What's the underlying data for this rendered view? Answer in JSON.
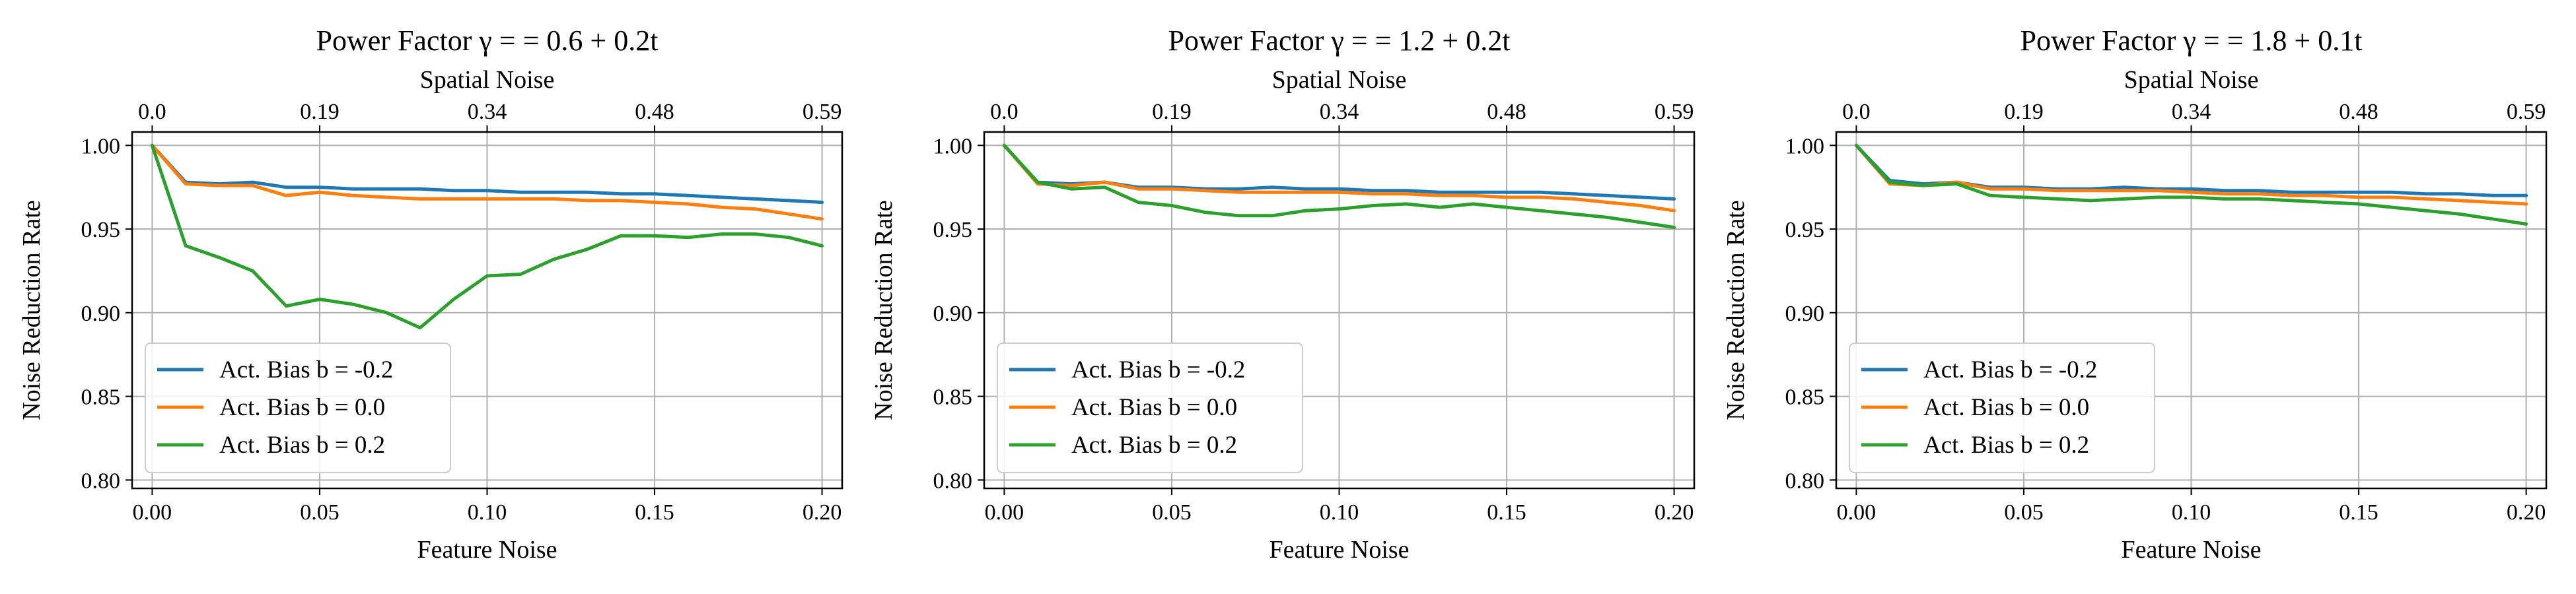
{
  "chart_data": [
    {
      "type": "line",
      "title": "Power Factor γ = = 0.6 + 0.2t",
      "xlabel": "Feature Noise",
      "ylabel": "Noise Reduction Rate",
      "top_xlabel": "Spatial Noise",
      "xlim": [
        -0.006,
        0.206
      ],
      "ylim": [
        0.795,
        1.008
      ],
      "x_ticks": [
        "0.00",
        "0.05",
        "0.10",
        "0.15",
        "0.20"
      ],
      "x_tick_values": [
        0,
        0.05,
        0.1,
        0.15,
        0.2
      ],
      "y_ticks": [
        "0.80",
        "0.85",
        "0.90",
        "0.95",
        "1.00"
      ],
      "y_tick_values": [
        0.8,
        0.85,
        0.9,
        0.95,
        1.0
      ],
      "top_ticks": [
        "0.0",
        "0.19",
        "0.34",
        "0.48",
        "0.59"
      ],
      "top_tick_values": [
        0,
        0.05,
        0.1,
        0.15,
        0.2
      ],
      "grid": true,
      "legend_position": "lower-left",
      "x": [
        0,
        0.01,
        0.02,
        0.03,
        0.04,
        0.05,
        0.06,
        0.07,
        0.08,
        0.09,
        0.1,
        0.11,
        0.12,
        0.13,
        0.14,
        0.15,
        0.16,
        0.17,
        0.18,
        0.19,
        0.2
      ],
      "series": [
        {
          "name": "Act. Bias b = -0.2",
          "color": "#1f77b4",
          "values": [
            1.0,
            0.978,
            0.977,
            0.978,
            0.975,
            0.975,
            0.974,
            0.974,
            0.974,
            0.973,
            0.973,
            0.972,
            0.972,
            0.972,
            0.971,
            0.971,
            0.97,
            0.969,
            0.968,
            0.967,
            0.966
          ]
        },
        {
          "name": "Act. Bias b = 0.0",
          "color": "#ff7f0e",
          "values": [
            1.0,
            0.977,
            0.976,
            0.976,
            0.97,
            0.972,
            0.97,
            0.969,
            0.968,
            0.968,
            0.968,
            0.968,
            0.968,
            0.967,
            0.967,
            0.966,
            0.965,
            0.963,
            0.962,
            0.959,
            0.956
          ]
        },
        {
          "name": "Act. Bias b = 0.2",
          "color": "#2ca02c",
          "values": [
            1.0,
            0.94,
            0.933,
            0.925,
            0.904,
            0.908,
            0.905,
            0.9,
            0.891,
            0.908,
            0.922,
            0.923,
            0.932,
            0.938,
            0.946,
            0.946,
            0.945,
            0.947,
            0.947,
            0.945,
            0.94
          ]
        }
      ]
    },
    {
      "type": "line",
      "title": "Power Factor γ = = 1.2 + 0.2t",
      "xlabel": "Feature Noise",
      "ylabel": "Noise Reduction Rate",
      "top_xlabel": "Spatial Noise",
      "xlim": [
        -0.006,
        0.206
      ],
      "ylim": [
        0.795,
        1.008
      ],
      "x_ticks": [
        "0.00",
        "0.05",
        "0.10",
        "0.15",
        "0.20"
      ],
      "x_tick_values": [
        0,
        0.05,
        0.1,
        0.15,
        0.2
      ],
      "y_ticks": [
        "0.80",
        "0.85",
        "0.90",
        "0.95",
        "1.00"
      ],
      "y_tick_values": [
        0.8,
        0.85,
        0.9,
        0.95,
        1.0
      ],
      "top_ticks": [
        "0.0",
        "0.19",
        "0.34",
        "0.48",
        "0.59"
      ],
      "top_tick_values": [
        0,
        0.05,
        0.1,
        0.15,
        0.2
      ],
      "grid": true,
      "legend_position": "lower-left",
      "x": [
        0,
        0.01,
        0.02,
        0.03,
        0.04,
        0.05,
        0.06,
        0.07,
        0.08,
        0.09,
        0.1,
        0.11,
        0.12,
        0.13,
        0.14,
        0.15,
        0.16,
        0.17,
        0.18,
        0.19,
        0.2
      ],
      "series": [
        {
          "name": "Act. Bias b = -0.2",
          "color": "#1f77b4",
          "values": [
            1.0,
            0.978,
            0.977,
            0.978,
            0.975,
            0.975,
            0.974,
            0.974,
            0.975,
            0.974,
            0.974,
            0.973,
            0.973,
            0.972,
            0.972,
            0.972,
            0.972,
            0.971,
            0.97,
            0.969,
            0.968
          ]
        },
        {
          "name": "Act. Bias b = 0.0",
          "color": "#ff7f0e",
          "values": [
            1.0,
            0.977,
            0.976,
            0.978,
            0.974,
            0.974,
            0.973,
            0.972,
            0.972,
            0.972,
            0.972,
            0.971,
            0.971,
            0.97,
            0.97,
            0.969,
            0.969,
            0.968,
            0.966,
            0.964,
            0.961
          ]
        },
        {
          "name": "Act. Bias b = 0.2",
          "color": "#2ca02c",
          "values": [
            1.0,
            0.978,
            0.974,
            0.975,
            0.966,
            0.964,
            0.96,
            0.958,
            0.958,
            0.961,
            0.962,
            0.964,
            0.965,
            0.963,
            0.965,
            0.963,
            0.961,
            0.959,
            0.957,
            0.954,
            0.951
          ]
        }
      ]
    },
    {
      "type": "line",
      "title": "Power Factor γ = = 1.8 + 0.1t",
      "xlabel": "Feature Noise",
      "ylabel": "Noise Reduction Rate",
      "top_xlabel": "Spatial Noise",
      "xlim": [
        -0.006,
        0.206
      ],
      "ylim": [
        0.795,
        1.008
      ],
      "x_ticks": [
        "0.00",
        "0.05",
        "0.10",
        "0.15",
        "0.20"
      ],
      "x_tick_values": [
        0,
        0.05,
        0.1,
        0.15,
        0.2
      ],
      "y_ticks": [
        "0.80",
        "0.85",
        "0.90",
        "0.95",
        "1.00"
      ],
      "y_tick_values": [
        0.8,
        0.85,
        0.9,
        0.95,
        1.0
      ],
      "top_ticks": [
        "0.0",
        "0.19",
        "0.34",
        "0.48",
        "0.59"
      ],
      "top_tick_values": [
        0,
        0.05,
        0.1,
        0.15,
        0.2
      ],
      "grid": true,
      "legend_position": "lower-left",
      "x": [
        0,
        0.01,
        0.02,
        0.03,
        0.04,
        0.05,
        0.06,
        0.07,
        0.08,
        0.09,
        0.1,
        0.11,
        0.12,
        0.13,
        0.14,
        0.15,
        0.16,
        0.17,
        0.18,
        0.19,
        0.2
      ],
      "series": [
        {
          "name": "Act. Bias b = -0.2",
          "color": "#1f77b4",
          "values": [
            1.0,
            0.979,
            0.977,
            0.978,
            0.975,
            0.975,
            0.974,
            0.974,
            0.975,
            0.974,
            0.974,
            0.973,
            0.973,
            0.972,
            0.972,
            0.972,
            0.972,
            0.971,
            0.971,
            0.97,
            0.97
          ]
        },
        {
          "name": "Act. Bias b = 0.0",
          "color": "#ff7f0e",
          "values": [
            1.0,
            0.977,
            0.976,
            0.978,
            0.974,
            0.974,
            0.973,
            0.973,
            0.973,
            0.973,
            0.972,
            0.971,
            0.971,
            0.97,
            0.97,
            0.969,
            0.969,
            0.968,
            0.967,
            0.966,
            0.965
          ]
        },
        {
          "name": "Act. Bias b = 0.2",
          "color": "#2ca02c",
          "values": [
            1.0,
            0.978,
            0.976,
            0.977,
            0.97,
            0.969,
            0.968,
            0.967,
            0.968,
            0.969,
            0.969,
            0.968,
            0.968,
            0.967,
            0.966,
            0.965,
            0.963,
            0.961,
            0.959,
            0.956,
            0.953
          ]
        }
      ]
    }
  ]
}
